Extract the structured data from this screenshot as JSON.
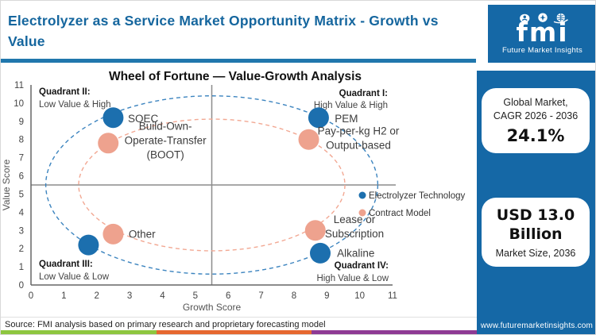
{
  "header": {
    "title": "Electrolyzer as a Service Market Opportunity Matrix - Growth vs Value"
  },
  "logo": {
    "text": "fmi",
    "caption": "Future Market Insights",
    "icons": [
      "person-icon",
      "compass-icon",
      "globe-icon"
    ]
  },
  "sidebar": {
    "cagr_card": {
      "line1": "Global Market,",
      "line2": "CAGR 2026 - 2036",
      "value": "24.1%"
    },
    "size_card": {
      "value_line1": "USD 13.0",
      "value_line2": "Billion",
      "caption": "Market Size, 2036"
    },
    "website": "www.futuremarketinsights.com"
  },
  "footer": {
    "source": "Source: FMI analysis based on primary research and proprietary forecasting model"
  },
  "colors": {
    "brand_blue": "#1568a6",
    "title_blue": "#15669e",
    "rule_blue": "#2077ad",
    "tech_blue": "#1c6fae",
    "contract_salmon": "#eea28e",
    "ellipse_blue": "#3c84bf",
    "ellipse_salmon": "#f2a893",
    "midline_gray": "#8c8c8c",
    "axis_gray": "#666666",
    "stripe_green": "#8dc63f",
    "stripe_orange": "#e6682f",
    "stripe_purple": "#8e3a94"
  },
  "chart_data": {
    "type": "scatter",
    "title": "Wheel of Fortune — Value-Growth Analysis",
    "xlabel": "Growth Score",
    "ylabel": "Value Score",
    "xlim": [
      0,
      11
    ],
    "ylim": [
      0,
      11
    ],
    "xticks": [
      0,
      1,
      2,
      3,
      4,
      5,
      6,
      7,
      8,
      9,
      10,
      11
    ],
    "yticks": [
      0,
      1,
      2,
      3,
      4,
      5,
      6,
      7,
      8,
      9,
      10,
      11
    ],
    "midlines": {
      "x": 5.5,
      "y": 5.5
    },
    "grid": false,
    "legend_position": "center-right",
    "legend": [
      {
        "name": "Electrolyzer Technology",
        "color": "#1c6fae"
      },
      {
        "name": "Contract Model",
        "color": "#eea28e"
      }
    ],
    "quadrants": [
      {
        "title": "Quadrant I:",
        "subtitle": "High Value & High",
        "position": "top-right"
      },
      {
        "title": "Quadrant II:",
        "subtitle": "Low Value & High",
        "position": "top-left"
      },
      {
        "title": "Quadrant III:",
        "subtitle": "Low Value & Low",
        "position": "bottom-left"
      },
      {
        "title": "Quadrant IV:",
        "subtitle": "High Value & Low",
        "position": "bottom-right"
      }
    ],
    "series": [
      {
        "name": "Electrolyzer Technology",
        "color": "#1c6fae",
        "ellipse": {
          "cx": 5.5,
          "cy": 5.5,
          "rx": 5.05,
          "ry": 4.9,
          "stroke": "#3c84bf"
        },
        "points": [
          {
            "label": "SOEC",
            "x": 2.5,
            "y": 9.2,
            "label_lines": [
              "SOEC"
            ],
            "label_x": 2.95,
            "label_y": 8.95,
            "anchor": "start"
          },
          {
            "label": "PEM",
            "x": 8.75,
            "y": 9.2,
            "label_lines": [
              "PEM"
            ],
            "label_x": 9.24,
            "label_y": 8.95,
            "anchor": "start"
          },
          {
            "label": "",
            "x": 1.75,
            "y": 2.2,
            "label_lines": [],
            "label_x": 2.2,
            "label_y": 2.2,
            "anchor": "start"
          },
          {
            "label": "Alkaline",
            "x": 8.8,
            "y": 1.75,
            "label_lines": [
              "Alkaline"
            ],
            "label_x": 9.31,
            "label_y": 1.54,
            "anchor": "start"
          }
        ]
      },
      {
        "name": "Contract Model",
        "color": "#eea28e",
        "ellipse": {
          "cx": 5.5,
          "cy": 5.5,
          "rx": 4.05,
          "ry": 3.62,
          "stroke": "#f2a893"
        },
        "points": [
          {
            "label": "Build-Own-Operate-Transfer (BOOT)",
            "x": 2.35,
            "y": 7.8,
            "label_lines": [
              "Build-Own-",
              "Operate-Transfer",
              "(BOOT)"
            ],
            "label_x": 4.09,
            "label_y": 8.53,
            "anchor": "middle"
          },
          {
            "label": "Pay-per-kg H2 or Output-based",
            "x": 8.45,
            "y": 8.0,
            "label_lines": [
              "Pay-per-kg H2 or",
              "Output-based"
            ],
            "label_x": 9.96,
            "label_y": 8.27,
            "anchor": "middle"
          },
          {
            "label": "Other",
            "x": 2.5,
            "y": 2.8,
            "label_lines": [
              "Other"
            ],
            "label_x": 2.97,
            "label_y": 2.6,
            "anchor": "start"
          },
          {
            "label": "Lease or Subscription",
            "x": 8.65,
            "y": 3.0,
            "label_lines": [
              "Lease or",
              "Subscription"
            ],
            "label_x": 9.84,
            "label_y": 3.41,
            "anchor": "middle"
          }
        ]
      }
    ]
  }
}
